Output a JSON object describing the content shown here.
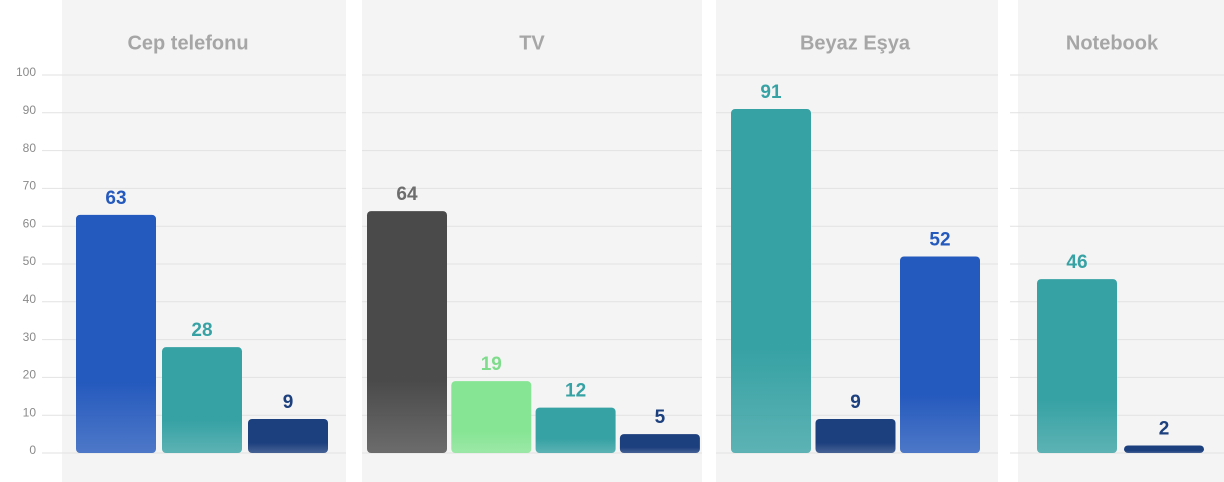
{
  "chart_data": [
    {
      "type": "bar",
      "title": "Cep telefonu",
      "values": [
        63,
        28,
        9
      ],
      "colors": [
        "#2459bd",
        "#37a2a4",
        "#1c3f7e"
      ],
      "label_colors": [
        "#2459bd",
        "#37a2a4",
        "#1c3f7e"
      ],
      "ylim": [
        0,
        100
      ],
      "yticks": [
        0,
        10,
        20,
        30,
        40,
        50,
        60,
        70,
        80,
        90,
        100
      ],
      "grid": true
    },
    {
      "type": "bar",
      "title": "TV",
      "values": [
        64,
        19,
        12,
        5
      ],
      "colors": [
        "#4a4a4a",
        "#86e594",
        "#37a2a4",
        "#1c3f7e"
      ],
      "label_colors": [
        "#6d6d6d",
        "#7fdc8c",
        "#37a2a4",
        "#1c3f7e"
      ],
      "ylim": [
        0,
        100
      ],
      "yticks": [
        0,
        10,
        20,
        30,
        40,
        50,
        60,
        70,
        80,
        90,
        100
      ],
      "grid": true
    },
    {
      "type": "bar",
      "title": "Beyaz Eşya",
      "values": [
        91,
        9,
        52
      ],
      "colors": [
        "#37a2a4",
        "#1c3f7e",
        "#2459bd"
      ],
      "label_colors": [
        "#37a2a4",
        "#1c3f7e",
        "#2459bd"
      ],
      "ylim": [
        0,
        100
      ],
      "yticks": [
        0,
        10,
        20,
        30,
        40,
        50,
        60,
        70,
        80,
        90,
        100
      ],
      "grid": true
    },
    {
      "type": "bar",
      "title": "Notebook",
      "values": [
        46,
        2
      ],
      "colors": [
        "#37a2a4",
        "#1c3f7e"
      ],
      "label_colors": [
        "#37a2a4",
        "#1c3f7e"
      ],
      "ylim": [
        0,
        100
      ],
      "yticks": [
        0,
        10,
        20,
        30,
        40,
        50,
        60,
        70,
        80,
        90,
        100
      ],
      "grid": true
    }
  ]
}
